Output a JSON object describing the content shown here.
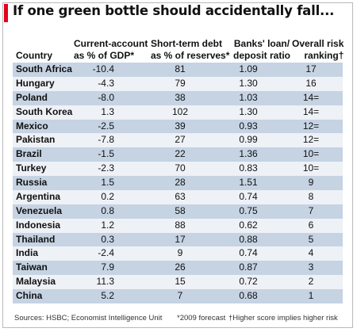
{
  "title": "If one green bottle should accidentally fall...",
  "chart_data": {
    "type": "table",
    "columns": [
      {
        "key": "country",
        "label_lines": [
          "Country"
        ]
      },
      {
        "key": "ca",
        "label_lines": [
          "Current-account",
          "as % of GDP*"
        ]
      },
      {
        "key": "std",
        "label_lines": [
          "Short-term debt",
          "as % of reserves*"
        ]
      },
      {
        "key": "bank",
        "label_lines": [
          "Banks' loan/",
          "deposit ratio"
        ]
      },
      {
        "key": "rank",
        "label_lines": [
          "Overall risk",
          "ranking†"
        ]
      }
    ],
    "rows": [
      {
        "country": "South Africa",
        "ca": "-10.4",
        "std": "81",
        "bank": "1.09",
        "rank": "17"
      },
      {
        "country": "Hungary",
        "ca": "-4.3",
        "std": "79",
        "bank": "1.30",
        "rank": "16"
      },
      {
        "country": "Poland",
        "ca": "-8.0",
        "std": "38",
        "bank": "1.03",
        "rank": "14="
      },
      {
        "country": "South Korea",
        "ca": "1.3",
        "std": "102",
        "bank": "1.30",
        "rank": "14="
      },
      {
        "country": "Mexico",
        "ca": "-2.5",
        "std": "39",
        "bank": "0.93",
        "rank": "12="
      },
      {
        "country": "Pakistan",
        "ca": "-7.8",
        "std": "27",
        "bank": "0.99",
        "rank": "12="
      },
      {
        "country": "Brazil",
        "ca": "-1.5",
        "std": "22",
        "bank": "1.36",
        "rank": "10="
      },
      {
        "country": "Turkey",
        "ca": "-2.3",
        "std": "70",
        "bank": "0.83",
        "rank": "10="
      },
      {
        "country": "Russia",
        "ca": "1.5",
        "std": "28",
        "bank": "1.51",
        "rank": "9"
      },
      {
        "country": "Argentina",
        "ca": "0.2",
        "std": "63",
        "bank": "0.74",
        "rank": "8"
      },
      {
        "country": "Venezuela",
        "ca": "0.8",
        "std": "58",
        "bank": "0.75",
        "rank": "7"
      },
      {
        "country": "Indonesia",
        "ca": "1.2",
        "std": "88",
        "bank": "0.62",
        "rank": "6"
      },
      {
        "country": "Thailand",
        "ca": "0.3",
        "std": "17",
        "bank": "0.88",
        "rank": "5"
      },
      {
        "country": "India",
        "ca": "-2.4",
        "std": "9",
        "bank": "0.74",
        "rank": "4"
      },
      {
        "country": "Taiwan",
        "ca": "7.9",
        "std": "26",
        "bank": "0.87",
        "rank": "3"
      },
      {
        "country": "Malaysia",
        "ca": "11.3",
        "std": "15",
        "bank": "0.72",
        "rank": "2"
      },
      {
        "country": "China",
        "ca": "5.2",
        "std": "7",
        "bank": "0.68",
        "rank": "1"
      }
    ]
  },
  "footer": {
    "sources": "Sources: HSBC; Economist Intelligence Unit",
    "forecast_note": "*2009 forecast",
    "risk_note": "†Higher score implies higher risk"
  },
  "colors": {
    "accent": "#e2001a",
    "row_shaded": "#c5d3e3",
    "row_light": "#eef1f6"
  }
}
